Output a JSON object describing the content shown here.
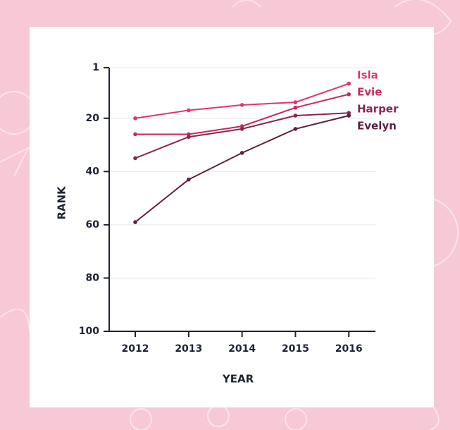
{
  "chart_data": {
    "type": "line",
    "y_label": "RANK",
    "x_label": "YEAR",
    "categories": [
      "2012",
      "2013",
      "2014",
      "2015",
      "2016"
    ],
    "series": [
      {
        "name": "Isla",
        "color": "#e3336f",
        "values": [
          20,
          17,
          15,
          14,
          7
        ]
      },
      {
        "name": "Evie",
        "color": "#c22a60",
        "values": [
          26,
          26,
          23,
          16,
          11
        ]
      },
      {
        "name": "Harper",
        "color": "#8c2552",
        "values": [
          35,
          27,
          24,
          19,
          18
        ]
      },
      {
        "name": "Evelyn",
        "color": "#5e1f40",
        "values": [
          59,
          43,
          33,
          24,
          19
        ]
      }
    ],
    "ylim": [
      100,
      1
    ],
    "yticks": [
      1,
      20,
      40,
      60,
      80,
      100
    ],
    "grid": true
  }
}
